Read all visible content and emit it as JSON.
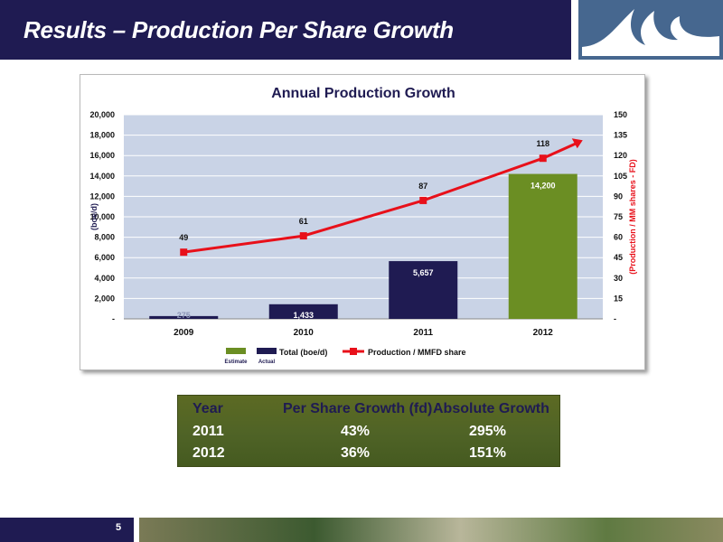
{
  "slide": {
    "title": "Results – Production Per Share Growth",
    "page_number": "5"
  },
  "colors": {
    "header_bg": "#1f1b52",
    "actual_bar": "#1f1b52",
    "estimate_bar": "#6b8e23",
    "line": "#e8101a",
    "plot_bg": "#c9d3e6"
  },
  "icons": {
    "logo": "wave-logo-icon",
    "footer": "landscape-photo"
  },
  "chart_data": {
    "type": "bar",
    "title": "Annual Production Growth",
    "categories": [
      "2009",
      "2010",
      "2011",
      "2012"
    ],
    "ylabel": "(boe/d)",
    "y2label": "(Production / MM shares - FD)",
    "ylim": [
      0,
      20000
    ],
    "y2lim": [
      0,
      150
    ],
    "y_ticks": [
      "-",
      "2,000",
      "4,000",
      "6,000",
      "8,000",
      "10,000",
      "12,000",
      "14,000",
      "16,000",
      "18,000",
      "20,000"
    ],
    "y2_ticks": [
      "-",
      "15",
      "30",
      "45",
      "60",
      "75",
      "90",
      "105",
      "120",
      "135",
      "150"
    ],
    "grid": true,
    "series": [
      {
        "name": "Total (boe/d)",
        "kind": "bar",
        "values": [
          275,
          1433,
          5657,
          14200
        ],
        "labels": [
          "275",
          "1,433",
          "5,657",
          "14,200"
        ],
        "status": [
          "actual",
          "actual",
          "actual",
          "estimate"
        ]
      },
      {
        "name": "Production / MMFD share",
        "kind": "line",
        "axis": "right",
        "values": [
          49,
          61,
          87,
          118
        ],
        "labels": [
          "49",
          "61",
          "87",
          "118"
        ]
      }
    ],
    "legend": {
      "estimate": "Estimate",
      "actual": "Actual",
      "placement": "bottom"
    }
  },
  "growth_table": {
    "headers": [
      "Year",
      "Per Share Growth (fd)",
      "Absolute Growth"
    ],
    "rows": [
      [
        "2011",
        "43%",
        "295%"
      ],
      [
        "2012",
        "36%",
        "151%"
      ]
    ]
  }
}
